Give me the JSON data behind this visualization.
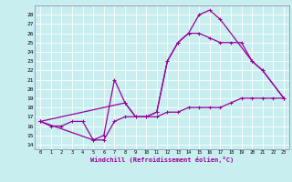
{
  "xlabel": "Windchill (Refroidissement éolien,°C)",
  "bg_color": "#c8eef0",
  "grid_color": "#ffffff",
  "line_color": "#990099",
  "xlim": [
    -0.5,
    23.5
  ],
  "ylim": [
    13.5,
    29.0
  ],
  "xticks": [
    0,
    1,
    2,
    3,
    4,
    5,
    6,
    7,
    8,
    9,
    10,
    11,
    12,
    13,
    14,
    15,
    16,
    17,
    18,
    19,
    20,
    21,
    22,
    23
  ],
  "yticks": [
    14,
    15,
    16,
    17,
    18,
    19,
    20,
    21,
    22,
    23,
    24,
    25,
    26,
    27,
    28
  ],
  "line1_x": [
    0,
    1,
    2,
    3,
    4,
    5,
    6,
    7,
    8,
    9,
    10,
    11,
    12,
    13,
    14,
    15,
    16,
    17,
    18,
    19,
    20,
    21,
    22,
    23
  ],
  "line1_y": [
    16.5,
    16.0,
    16.0,
    16.5,
    16.5,
    14.5,
    14.5,
    16.5,
    17.0,
    17.0,
    17.0,
    17.0,
    17.5,
    17.5,
    18.0,
    18.0,
    18.0,
    18.0,
    18.5,
    19.0,
    19.0,
    19.0,
    19.0,
    19.0
  ],
  "line2_x": [
    0,
    5,
    6,
    7,
    8,
    9,
    10,
    11,
    12,
    13,
    14,
    15,
    16,
    17,
    20,
    21,
    23
  ],
  "line2_y": [
    16.5,
    14.5,
    15.0,
    21.0,
    18.5,
    17.0,
    17.0,
    17.5,
    23.0,
    25.0,
    26.0,
    28.0,
    28.5,
    27.5,
    23.0,
    22.0,
    19.0
  ],
  "line3_x": [
    0,
    8,
    9,
    10,
    11,
    12,
    13,
    14,
    15,
    16,
    17,
    18,
    19,
    20,
    21,
    23
  ],
  "line3_y": [
    16.5,
    18.5,
    17.0,
    17.0,
    17.5,
    23.0,
    25.0,
    26.0,
    26.0,
    25.5,
    25.0,
    25.0,
    25.0,
    23.0,
    22.0,
    19.0
  ]
}
